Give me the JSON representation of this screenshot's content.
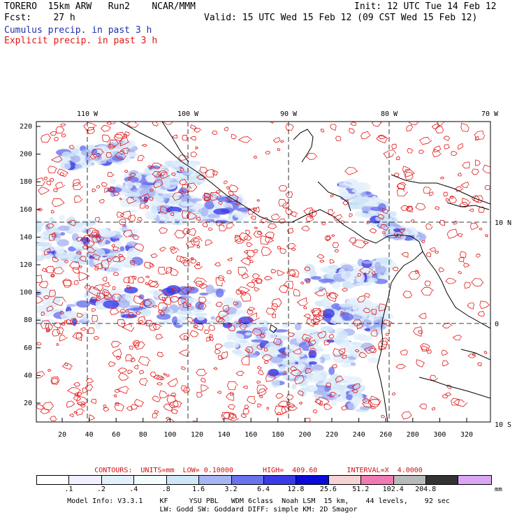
{
  "header": {
    "model": "TORERO  15km ARW   Run2    NCAR/MMM",
    "forecast": "Fcst:    27 h",
    "init": "Init: 12 UTC Tue 14 Feb 12",
    "valid": "Valid: 15 UTC Wed 15 Feb 12 (09 CST Wed 15 Feb 12)",
    "field1": "Cumulus precip. in past 3 h",
    "field2": "Explicit precip. in past 3 h",
    "field1_color": "#1f2fb0",
    "field2_color": "#e01515"
  },
  "axes": {
    "top_lon": [
      "110 W",
      "100 W",
      "90 W",
      "80 W",
      "70 W"
    ],
    "right_lat": [
      "10 N",
      "0",
      "10 S"
    ],
    "left_y": [
      "220",
      "200",
      "180",
      "160",
      "140",
      "120",
      "100",
      "80",
      "60",
      "40",
      "20"
    ],
    "bottom_x": [
      "20",
      "40",
      "60",
      "80",
      "100",
      "120",
      "140",
      "160",
      "180",
      "200",
      "220",
      "240",
      "260",
      "280",
      "300",
      "320"
    ]
  },
  "contours": {
    "text": "CONTOURS:  UNITS=mm  LOW= 0.10000       HIGH=  409.60       INTERVAL=X  4.0000"
  },
  "legend": {
    "labels": [
      ".1",
      ".2",
      ".4",
      ".8",
      "1.6",
      "3.2",
      "6.4",
      "12.8",
      "25.6",
      "51.2",
      "102.4",
      "204.8"
    ],
    "unit": "mm",
    "colors": [
      "#ffffff",
      "#f0f0ff",
      "#e3f0fb",
      "#f2fcfc",
      "#cfe6f7",
      "#a8b4f3",
      "#6a72ec",
      "#3a3ae6",
      "#0a0ad9",
      "#f7d2d2",
      "#f07ab2",
      "#b9b9b9",
      "#333333",
      "#d8a6f5"
    ]
  },
  "footer": {
    "line1": "Model Info: V3.3.1    KF     YSU PBL   WDM 6class  Noah LSM  15 km,    44 levels,    92 sec",
    "line2": "LW: Godd SW: Goddard DIFF: simple KM: 2D Smagor"
  }
}
